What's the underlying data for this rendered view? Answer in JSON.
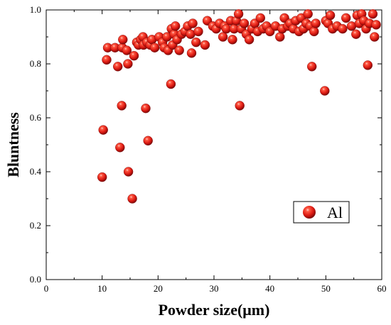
{
  "chart_data": {
    "type": "scatter",
    "xlabel": "Powder size(μm)",
    "ylabel": "Bluntness",
    "xlim": [
      0,
      60
    ],
    "ylim": [
      0.0,
      1.0
    ],
    "x_ticks": [
      "0",
      "10",
      "20",
      "30",
      "40",
      "50",
      "60"
    ],
    "y_ticks": [
      "0.0",
      "0.2",
      "0.4",
      "0.6",
      "0.8",
      "1.0"
    ],
    "grid": false,
    "legend_position": "middle-right",
    "marker_color": "#e8241c",
    "series": [
      {
        "name": "Al",
        "points": [
          [
            10.0,
            0.38
          ],
          [
            10.2,
            0.555
          ],
          [
            10.8,
            0.815
          ],
          [
            11.0,
            0.86
          ],
          [
            12.3,
            0.86
          ],
          [
            12.8,
            0.79
          ],
          [
            13.2,
            0.49
          ],
          [
            13.5,
            0.645
          ],
          [
            13.6,
            0.86
          ],
          [
            13.7,
            0.89
          ],
          [
            14.4,
            0.85
          ],
          [
            14.6,
            0.8
          ],
          [
            14.7,
            0.4
          ],
          [
            15.4,
            0.3
          ],
          [
            15.7,
            0.83
          ],
          [
            16.2,
            0.88
          ],
          [
            16.5,
            0.87
          ],
          [
            16.9,
            0.89
          ],
          [
            17.3,
            0.9
          ],
          [
            17.4,
            0.87
          ],
          [
            17.8,
            0.635
          ],
          [
            18.0,
            0.88
          ],
          [
            18.2,
            0.515
          ],
          [
            18.6,
            0.87
          ],
          [
            18.9,
            0.89
          ],
          [
            19.4,
            0.86
          ],
          [
            20.2,
            0.9
          ],
          [
            20.8,
            0.88
          ],
          [
            21.1,
            0.86
          ],
          [
            21.6,
            0.9
          ],
          [
            21.8,
            0.85
          ],
          [
            22.3,
            0.725
          ],
          [
            22.4,
            0.93
          ],
          [
            22.6,
            0.87
          ],
          [
            22.9,
            0.91
          ],
          [
            23.1,
            0.94
          ],
          [
            23.4,
            0.89
          ],
          [
            23.8,
            0.85
          ],
          [
            24.2,
            0.91
          ],
          [
            24.8,
            0.92
          ],
          [
            25.3,
            0.94
          ],
          [
            25.8,
            0.91
          ],
          [
            26.0,
            0.84
          ],
          [
            26.2,
            0.95
          ],
          [
            26.8,
            0.88
          ],
          [
            27.2,
            0.92
          ],
          [
            28.4,
            0.87
          ],
          [
            28.8,
            0.96
          ],
          [
            29.8,
            0.94
          ],
          [
            30.4,
            0.93
          ],
          [
            31.0,
            0.95
          ],
          [
            31.6,
            0.9
          ],
          [
            31.9,
            0.94
          ],
          [
            32.2,
            0.93
          ],
          [
            33.0,
            0.96
          ],
          [
            33.3,
            0.89
          ],
          [
            33.6,
            0.93
          ],
          [
            34.0,
            0.96
          ],
          [
            34.4,
            0.985
          ],
          [
            34.6,
            0.645
          ],
          [
            34.9,
            0.93
          ],
          [
            35.4,
            0.95
          ],
          [
            35.8,
            0.91
          ],
          [
            36.3,
            0.89
          ],
          [
            36.8,
            0.93
          ],
          [
            37.3,
            0.95
          ],
          [
            37.8,
            0.92
          ],
          [
            38.3,
            0.97
          ],
          [
            38.8,
            0.93
          ],
          [
            39.4,
            0.94
          ],
          [
            40.0,
            0.92
          ],
          [
            41.0,
            0.94
          ],
          [
            41.8,
            0.9
          ],
          [
            42.2,
            0.93
          ],
          [
            42.6,
            0.97
          ],
          [
            43.2,
            0.94
          ],
          [
            43.6,
            0.95
          ],
          [
            44.2,
            0.93
          ],
          [
            44.6,
            0.96
          ],
          [
            45.2,
            0.92
          ],
          [
            45.6,
            0.97
          ],
          [
            46.0,
            0.93
          ],
          [
            46.5,
            0.95
          ],
          [
            46.8,
            0.985
          ],
          [
            47.2,
            0.94
          ],
          [
            47.5,
            0.79
          ],
          [
            47.9,
            0.92
          ],
          [
            48.2,
            0.95
          ],
          [
            49.8,
            0.7
          ],
          [
            50.0,
            0.96
          ],
          [
            50.4,
            0.95
          ],
          [
            50.8,
            0.98
          ],
          [
            51.2,
            0.93
          ],
          [
            52.0,
            0.94
          ],
          [
            53.0,
            0.93
          ],
          [
            53.6,
            0.97
          ],
          [
            54.6,
            0.94
          ],
          [
            55.4,
            0.91
          ],
          [
            55.6,
            0.98
          ],
          [
            56.0,
            0.95
          ],
          [
            56.4,
            0.985
          ],
          [
            56.8,
            0.96
          ],
          [
            57.2,
            0.93
          ],
          [
            57.5,
            0.795
          ],
          [
            57.8,
            0.95
          ],
          [
            58.4,
            0.985
          ],
          [
            58.7,
            0.9
          ],
          [
            59.0,
            0.945
          ]
        ]
      }
    ]
  }
}
